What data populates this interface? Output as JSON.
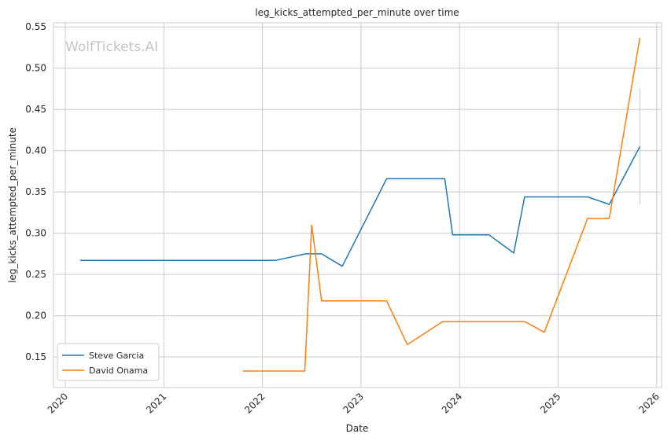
{
  "chart_data": {
    "type": "line",
    "title": "leg_kicks_attempted_per_minute over time",
    "xlabel": "Date",
    "ylabel": "leg_kicks_attempted_per_minute",
    "watermark": "WolfTickets.AI",
    "xlim": [
      2019.88,
      2026.05
    ],
    "ylim": [
      0.113,
      0.555
    ],
    "x_ticks": [
      2020,
      2021,
      2022,
      2023,
      2024,
      2025,
      2026
    ],
    "x_tick_labels": [
      "2020",
      "2021",
      "2022",
      "2023",
      "2024",
      "2025",
      "2026"
    ],
    "y_ticks": [
      0.15,
      0.2,
      0.25,
      0.3,
      0.35,
      0.4,
      0.45,
      0.5,
      0.55
    ],
    "y_tick_labels": [
      "0.15",
      "0.20",
      "0.25",
      "0.30",
      "0.35",
      "0.40",
      "0.45",
      "0.50",
      "0.55"
    ],
    "grid": true,
    "legend_position": "lower-left",
    "series": [
      {
        "name": "Steve Garcia",
        "color": "#1f77b4",
        "x": [
          2020.15,
          2022.13,
          2022.44,
          2022.6,
          2022.81,
          2023.26,
          2023.85,
          2023.93,
          2024.3,
          2024.55,
          2024.66,
          2025.3,
          2025.52,
          2025.83
        ],
        "y": [
          0.267,
          0.267,
          0.275,
          0.275,
          0.26,
          0.366,
          0.366,
          0.298,
          0.298,
          0.276,
          0.344,
          0.344,
          0.335,
          0.405
        ],
        "band": {
          "x": 2025.83,
          "low": 0.335,
          "high": 0.475
        }
      },
      {
        "name": "David Onama",
        "color": "#ff7f0e",
        "x": [
          2021.8,
          2022.43,
          2022.5,
          2022.6,
          2023.26,
          2023.47,
          2023.83,
          2024.66,
          2024.86,
          2025.3,
          2025.52,
          2025.83
        ],
        "y": [
          0.133,
          0.133,
          0.31,
          0.218,
          0.218,
          0.165,
          0.193,
          0.193,
          0.18,
          0.318,
          0.318,
          0.537
        ]
      }
    ]
  }
}
